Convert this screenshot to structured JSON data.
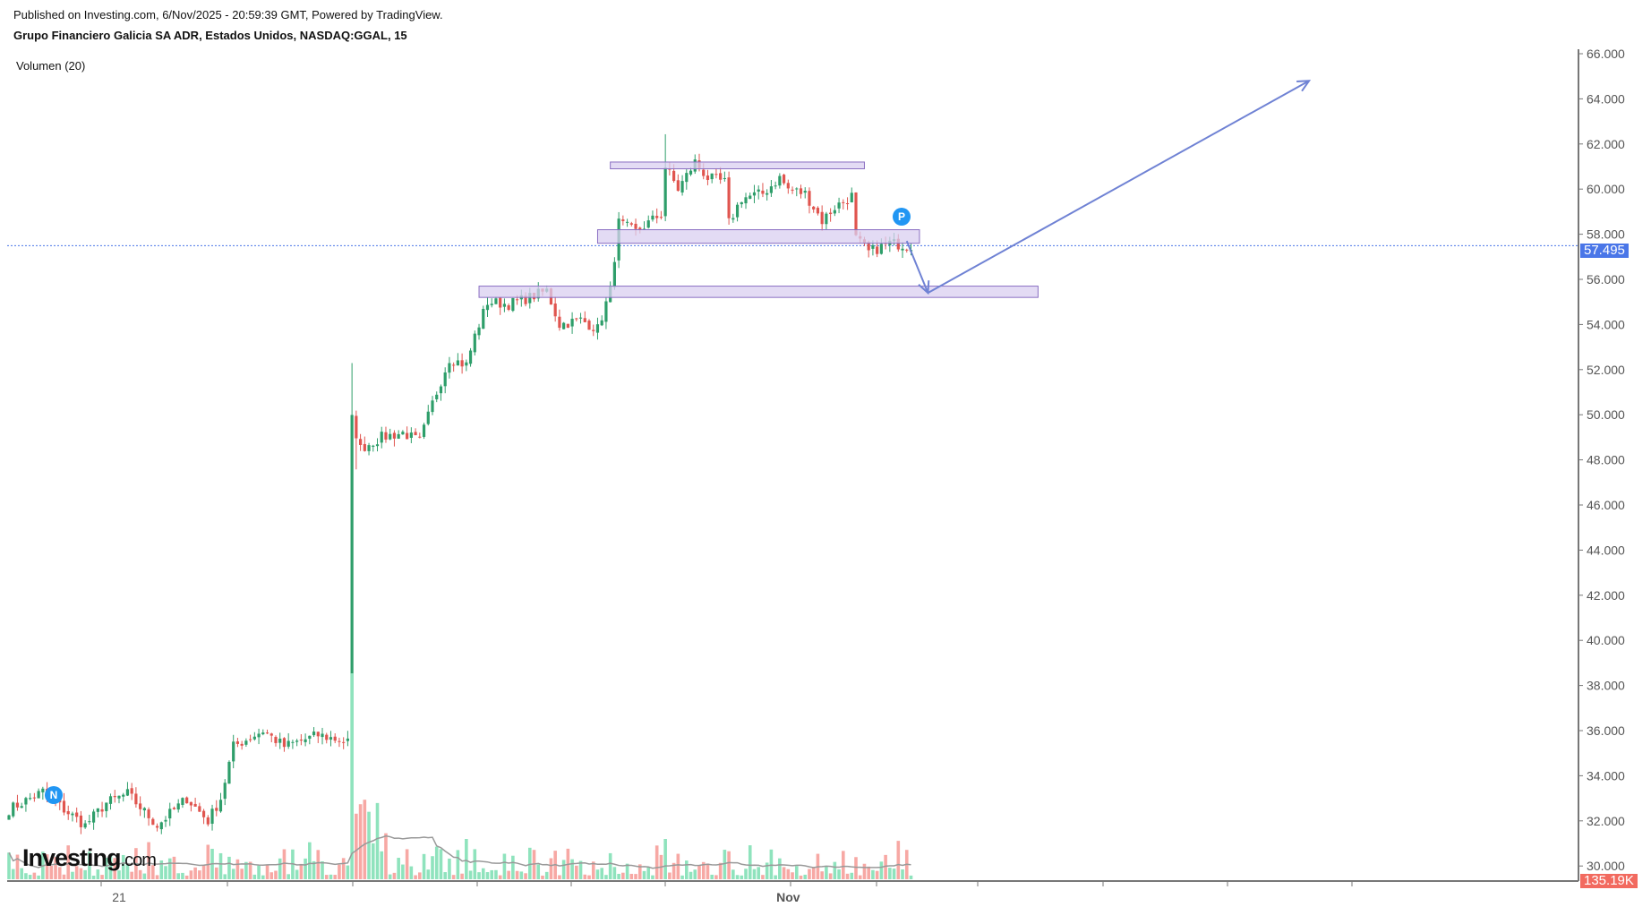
{
  "header": {
    "published": "Published on Investing.com, 6/Nov/2025 - 20:59:39 GMT, Powered by TradingView.",
    "title": "Grupo Financiero Galicia SA ADR, Estados Unidos, NASDAQ:GGAL, 15",
    "volume_indicator": "Volumen (20)"
  },
  "logo": {
    "main": "Investing",
    "suffix": ".com"
  },
  "markers": {
    "n": "N",
    "p": "P"
  },
  "colors": {
    "up": "#2e9e6a",
    "down": "#e0554f",
    "vol_up": "#8fe3bd",
    "vol_down": "#f7a8a4",
    "drawing": "#6f82d4",
    "zone_fill": "#d9cff0",
    "zone_stroke": "#8a6fc2",
    "price_label": "#4a76e8",
    "volume_label": "#f26a5f"
  },
  "chart_data": {
    "type": "candlestick",
    "title": "Grupo Financiero Galicia SA ADR, Estados Unidos, NASDAQ:GGAL, 15",
    "y_ticks": [
      "66.000",
      "64.000",
      "62.000",
      "60.000",
      "58.000",
      "56.000",
      "54.000",
      "52.000",
      "50.000",
      "48.000",
      "46.000",
      "44.000",
      "42.000",
      "40.000",
      "38.000",
      "36.000",
      "34.000",
      "32.000",
      "30.000"
    ],
    "ylim": [
      30,
      66
    ],
    "x_labels": [
      {
        "bar": 26,
        "label": "21"
      },
      {
        "bar": 184,
        "label": "Nov"
      }
    ],
    "current_price": "57.495",
    "last_volume": "135.19K",
    "close_path": [
      {
        "bar": 0,
        "close": 32.5
      },
      {
        "bar": 8,
        "close": 33.3
      },
      {
        "bar": 13,
        "close": 32.5
      },
      {
        "bar": 18,
        "close": 31.8
      },
      {
        "bar": 23,
        "close": 32.8
      },
      {
        "bar": 28,
        "close": 33.2
      },
      {
        "bar": 35,
        "close": 31.8
      },
      {
        "bar": 42,
        "close": 33.0
      },
      {
        "bar": 47,
        "close": 32.0
      },
      {
        "bar": 50,
        "close": 33.0
      },
      {
        "bar": 53,
        "close": 35.3
      },
      {
        "bar": 60,
        "close": 36.0
      },
      {
        "bar": 65,
        "close": 35.3
      },
      {
        "bar": 73,
        "close": 35.8
      },
      {
        "bar": 80,
        "close": 35.5
      },
      {
        "bar": 81,
        "close": 49.8
      },
      {
        "bar": 83,
        "close": 48.5
      },
      {
        "bar": 88,
        "close": 49.0
      },
      {
        "bar": 93,
        "close": 49.2
      },
      {
        "bar": 97,
        "close": 48.8
      },
      {
        "bar": 100,
        "close": 50.5
      },
      {
        "bar": 104,
        "close": 52.5
      },
      {
        "bar": 108,
        "close": 52.2
      },
      {
        "bar": 110,
        "close": 53.5
      },
      {
        "bar": 113,
        "close": 55.0
      },
      {
        "bar": 118,
        "close": 54.9
      },
      {
        "bar": 123,
        "close": 55.2
      },
      {
        "bar": 127,
        "close": 55.5
      },
      {
        "bar": 130,
        "close": 54.0
      },
      {
        "bar": 135,
        "close": 54.2
      },
      {
        "bar": 139,
        "close": 53.8
      },
      {
        "bar": 142,
        "close": 55.5
      },
      {
        "bar": 144,
        "close": 58.5
      },
      {
        "bar": 148,
        "close": 58.1
      },
      {
        "bar": 154,
        "close": 58.9
      },
      {
        "bar": 155,
        "close": 61.0
      },
      {
        "bar": 158,
        "close": 60.0
      },
      {
        "bar": 162,
        "close": 61.2
      },
      {
        "bar": 165,
        "close": 60.5
      },
      {
        "bar": 169,
        "close": 60.3
      },
      {
        "bar": 170,
        "close": 58.5
      },
      {
        "bar": 173,
        "close": 59.6
      },
      {
        "bar": 178,
        "close": 59.8
      },
      {
        "bar": 182,
        "close": 60.5
      },
      {
        "bar": 184,
        "close": 60.0
      },
      {
        "bar": 188,
        "close": 59.8
      },
      {
        "bar": 192,
        "close": 58.6
      },
      {
        "bar": 195,
        "close": 59.2
      },
      {
        "bar": 199,
        "close": 59.7
      },
      {
        "bar": 200,
        "close": 57.8
      },
      {
        "bar": 203,
        "close": 57.2
      },
      {
        "bar": 208,
        "close": 57.6
      },
      {
        "bar": 213,
        "close": 57.5
      }
    ],
    "zones": [
      {
        "from_bar": 142,
        "to_bar": 202,
        "top": 61.2,
        "bottom": 60.9
      },
      {
        "from_bar": 139,
        "to_bar": 215,
        "top": 58.2,
        "bottom": 57.6
      },
      {
        "from_bar": 111,
        "to_bar": 243,
        "top": 55.7,
        "bottom": 55.2
      }
    ],
    "projection": [
      {
        "bar": 212,
        "price": 57.7
      },
      {
        "bar": 217,
        "price": 55.4
      },
      {
        "bar": 307,
        "price": 64.8
      }
    ]
  }
}
